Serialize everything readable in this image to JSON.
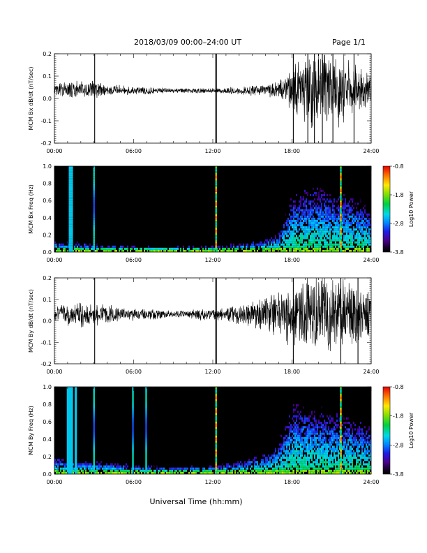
{
  "header": {
    "title": "2018/03/09   00:00–24:00 UT",
    "page": "Page 1/1"
  },
  "xlabel": "Universal Time (hh:mm)",
  "chart_data": [
    {
      "type": "line",
      "panel": "bx_timeseries",
      "ylabel": "MCM Bx dB/dt (nT/sec)",
      "xlim": [
        0,
        24
      ],
      "ylim": [
        -0.2,
        0.2
      ],
      "x_ticks": [
        "00:00",
        "06:00",
        "12:00",
        "18:00",
        "24:00"
      ],
      "y_ticks": [
        "-0.2",
        "-0.1",
        "0.0",
        "0.1",
        "0.2"
      ],
      "envelope": {
        "x_hours": [
          0,
          1,
          2,
          3,
          4,
          5,
          6,
          7,
          8,
          9,
          10,
          11,
          12,
          13,
          14,
          15,
          16,
          17,
          18,
          19,
          20,
          21,
          22,
          23,
          24
        ],
        "center": [
          0.04,
          0.04,
          0.04,
          0.04,
          0.04,
          0.04,
          0.035,
          0.035,
          0.035,
          0.035,
          0.035,
          0.035,
          0.035,
          0.035,
          0.035,
          0.035,
          0.035,
          0.04,
          0.04,
          0.04,
          0.04,
          0.04,
          0.04,
          0.04,
          0.04
        ],
        "amplitude": [
          0.03,
          0.04,
          0.04,
          0.05,
          0.03,
          0.025,
          0.02,
          0.02,
          0.015,
          0.012,
          0.012,
          0.012,
          0.012,
          0.015,
          0.02,
          0.025,
          0.03,
          0.04,
          0.12,
          0.18,
          0.2,
          0.2,
          0.16,
          0.12,
          0.08
        ]
      },
      "spikes_hours": [
        3.05,
        12.25,
        18.1,
        19.2,
        19.7,
        20.3,
        21.1,
        22.7
      ]
    },
    {
      "type": "heatmap",
      "panel": "bx_spectrogram",
      "ylabel": "MCM Bx Freq (Hz)",
      "xlim": [
        0,
        24
      ],
      "ylim": [
        0,
        1.0
      ],
      "x_ticks": [
        "00:00",
        "06:00",
        "12:00",
        "18:00",
        "24:00"
      ],
      "y_ticks": [
        "0.0",
        "0.2",
        "0.4",
        "0.6",
        "0.8",
        "1.0"
      ],
      "colorbar": {
        "label": "Log10 Power",
        "range": [
          -3.8,
          -0.8
        ],
        "ticks": [
          "-0.8",
          "-1.8",
          "-2.8",
          "-3.8"
        ]
      },
      "background_level": -3.8,
      "activity": {
        "x_hours": [
          0,
          2,
          4,
          6,
          8,
          10,
          12,
          14,
          16,
          17,
          18,
          19,
          20,
          21,
          22,
          23,
          24
        ],
        "ceiling_hz": [
          0.1,
          0.08,
          0.06,
          0.05,
          0.04,
          0.05,
          0.05,
          0.07,
          0.12,
          0.2,
          0.55,
          0.6,
          0.62,
          0.55,
          0.55,
          0.5,
          0.4
        ]
      },
      "vertical_lines_hours": [
        1.15,
        1.3,
        3.0,
        12.25,
        21.7
      ]
    },
    {
      "type": "line",
      "panel": "by_timeseries",
      "ylabel": "MCM By dB/dt (nT/sec)",
      "xlim": [
        0,
        24
      ],
      "ylim": [
        -0.2,
        0.2
      ],
      "x_ticks": [
        "00:00",
        "06:00",
        "12:00",
        "18:00",
        "24:00"
      ],
      "y_ticks": [
        "-0.2",
        "-0.1",
        "0.0",
        "0.1",
        "0.2"
      ],
      "envelope": {
        "x_hours": [
          0,
          1,
          2,
          3,
          4,
          5,
          6,
          7,
          8,
          9,
          10,
          11,
          12,
          13,
          14,
          15,
          16,
          17,
          18,
          19,
          20,
          21,
          22,
          23,
          24
        ],
        "center": [
          0.03,
          0.03,
          0.03,
          0.03,
          0.03,
          0.03,
          0.03,
          0.03,
          0.03,
          0.03,
          0.03,
          0.03,
          0.03,
          0.03,
          0.03,
          0.03,
          0.03,
          0.03,
          0.03,
          0.03,
          0.03,
          0.03,
          0.03,
          0.03,
          0.03
        ],
        "amplitude": [
          0.04,
          0.06,
          0.07,
          0.06,
          0.05,
          0.04,
          0.03,
          0.03,
          0.025,
          0.02,
          0.02,
          0.03,
          0.03,
          0.04,
          0.05,
          0.07,
          0.09,
          0.12,
          0.16,
          0.2,
          0.2,
          0.2,
          0.18,
          0.15,
          0.12
        ]
      },
      "spikes_hours": [
        3.05,
        12.25,
        18.1,
        21.7,
        23.0
      ]
    },
    {
      "type": "heatmap",
      "panel": "by_spectrogram",
      "ylabel": "MCM By Freq (Hz)",
      "xlim": [
        0,
        24
      ],
      "ylim": [
        0,
        1.0
      ],
      "x_ticks": [
        "00:00",
        "06:00",
        "12:00",
        "18:00",
        "24:00"
      ],
      "y_ticks": [
        "0.0",
        "0.2",
        "0.4",
        "0.6",
        "0.8",
        "1.0"
      ],
      "colorbar": {
        "label": "Log10 Power",
        "range": [
          -3.8,
          -0.8
        ],
        "ticks": [
          "-0.8",
          "-1.8",
          "-2.8",
          "-3.8"
        ]
      },
      "background_level": -3.8,
      "activity": {
        "x_hours": [
          0,
          2,
          4,
          6,
          8,
          10,
          12,
          14,
          16,
          17,
          18,
          19,
          20,
          21,
          22,
          23,
          24
        ],
        "ceiling_hz": [
          0.15,
          0.12,
          0.1,
          0.08,
          0.06,
          0.06,
          0.07,
          0.12,
          0.2,
          0.3,
          0.65,
          0.65,
          0.62,
          0.6,
          0.55,
          0.5,
          0.45
        ]
      },
      "vertical_lines_hours": [
        1.0,
        1.15,
        1.3,
        1.6,
        3.0,
        5.95,
        6.95,
        12.25,
        21.7
      ]
    }
  ]
}
